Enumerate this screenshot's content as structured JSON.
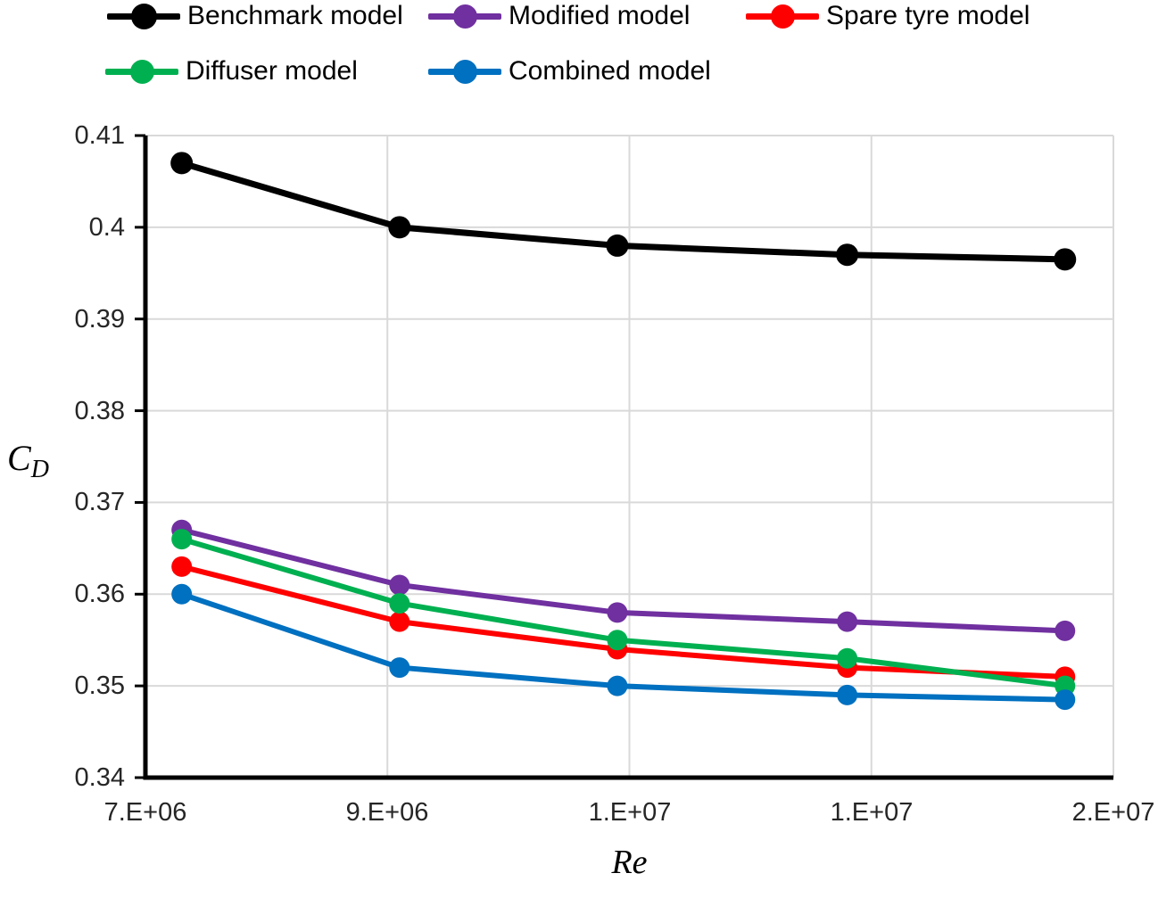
{
  "chart_data": {
    "type": "line",
    "title": "",
    "xlabel": "Re",
    "ylabel": "C",
    "ylabel_subscript": "D",
    "xlim": [
      7000000,
      15000000
    ],
    "ylim": [
      0.34,
      0.41
    ],
    "grid": true,
    "legend_position": "top-left, two rows",
    "gridline_color": "#D9D9D9",
    "axis_color": "#000000",
    "x_tick_values": [
      7000000,
      9000000,
      11000000,
      13000000,
      15000000
    ],
    "x_tick_labels": [
      "7.E+06",
      "9.E+06",
      "1.E+07",
      "1.E+07",
      "2.E+07"
    ],
    "y_tick_values": [
      0.41,
      0.4,
      0.39,
      0.38,
      0.37,
      0.36,
      0.35,
      0.34
    ],
    "y_tick_labels": [
      "0.41",
      "0.4",
      "0.39",
      "0.38",
      "0.37",
      "0.36",
      "0.35",
      "0.34"
    ],
    "x": [
      7300000,
      9100000,
      10900000,
      12800000,
      14600000
    ],
    "series": [
      {
        "name": "Benchmark model",
        "color": "#000000",
        "values": [
          0.407,
          0.4,
          0.398,
          0.397,
          0.3965
        ]
      },
      {
        "name": "Modified model",
        "color": "#7030A0",
        "values": [
          0.367,
          0.361,
          0.358,
          0.357,
          0.356
        ]
      },
      {
        "name": "Spare tyre model",
        "color": "#FF0000",
        "values": [
          0.363,
          0.357,
          0.354,
          0.352,
          0.351
        ]
      },
      {
        "name": "Diffuser model",
        "color": "#00B050",
        "values": [
          0.366,
          0.359,
          0.355,
          0.353,
          0.35
        ]
      },
      {
        "name": "Combined model",
        "color": "#0070C0",
        "values": [
          0.36,
          0.352,
          0.35,
          0.349,
          0.3485
        ]
      }
    ]
  }
}
